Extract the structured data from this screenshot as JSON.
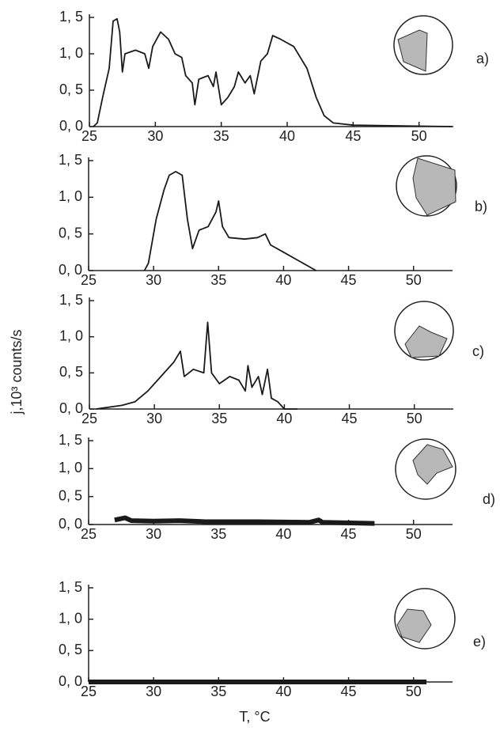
{
  "ylabel": "j,10³ counts/s",
  "chart_data": [
    {
      "type": "line",
      "label": "a)",
      "xlim": [
        25,
        52.6
      ],
      "ylim": [
        0,
        1.5
      ],
      "xticks": [
        25,
        30,
        35,
        40,
        45,
        50
      ],
      "yticks": [
        {
          "value": 0,
          "label": "0, 0"
        },
        {
          "value": 0.5,
          "label": "0, 5"
        },
        {
          "value": 1,
          "label": "1, 0"
        },
        {
          "value": 1.5,
          "label": "1, 5"
        }
      ],
      "x": [
        25.3,
        25.6,
        26,
        26.5,
        26.8,
        27.1,
        27.3,
        27.5,
        27.7,
        28.5,
        29.2,
        29.5,
        29.8,
        30.4,
        31,
        31.5,
        32,
        32.3,
        32.8,
        33,
        33.3,
        34,
        34.4,
        34.6,
        35,
        35.5,
        36,
        36.3,
        36.8,
        37.2,
        37.5,
        38,
        38.5,
        38.9,
        39.5,
        40.5,
        41.5,
        42.2,
        42.8,
        43.5,
        45,
        52.5
      ],
      "values": [
        0,
        0.05,
        0.4,
        0.8,
        1.45,
        1.48,
        1.3,
        0.75,
        1.0,
        1.05,
        1.0,
        0.8,
        1.1,
        1.3,
        1.2,
        1.0,
        0.95,
        0.7,
        0.6,
        0.3,
        0.65,
        0.7,
        0.55,
        0.75,
        0.3,
        0.4,
        0.55,
        0.75,
        0.6,
        0.7,
        0.45,
        0.9,
        1.0,
        1.25,
        1.2,
        1.1,
        0.8,
        0.4,
        0.15,
        0.05,
        0.02,
        0
      ]
    },
    {
      "type": "line",
      "label": "b)",
      "xlim": [
        25,
        53
      ],
      "ylim": [
        0,
        1.5
      ],
      "xticks": [
        25,
        30,
        35,
        40,
        45,
        50
      ],
      "yticks": [
        {
          "value": 0,
          "label": "0, 0"
        },
        {
          "value": 0.5,
          "label": "0, 5"
        },
        {
          "value": 1,
          "label": "1, 0"
        },
        {
          "value": 1.5,
          "label": "1, 5"
        }
      ],
      "x": [
        29.3,
        29.6,
        30.2,
        30.8,
        31.2,
        31.7,
        32.2,
        32.6,
        33,
        33.5,
        34.2,
        34.8,
        35,
        35.3,
        35.8,
        37,
        38,
        38.6,
        39,
        40,
        41,
        42,
        42.5
      ],
      "values": [
        0,
        0.1,
        0.7,
        1.1,
        1.3,
        1.35,
        1.3,
        0.7,
        0.3,
        0.55,
        0.6,
        0.8,
        0.95,
        0.6,
        0.45,
        0.43,
        0.45,
        0.5,
        0.35,
        0.25,
        0.15,
        0.05,
        0
      ]
    },
    {
      "type": "line",
      "label": "c)",
      "xlim": [
        25,
        53
      ],
      "ylim": [
        0,
        1.5
      ],
      "xticks": [
        25,
        30,
        35,
        40,
        45,
        50
      ],
      "yticks": [
        {
          "value": 0,
          "label": "0, 0"
        },
        {
          "value": 0.5,
          "label": "0, 5"
        },
        {
          "value": 1,
          "label": "1, 0"
        },
        {
          "value": 1.5,
          "label": "1, 5"
        }
      ],
      "x": [
        25.5,
        27.5,
        28.5,
        29.5,
        30.5,
        31.5,
        32,
        32.3,
        33,
        33.8,
        34.1,
        34.4,
        35,
        35.8,
        36.5,
        37,
        37.2,
        37.5,
        38,
        38.3,
        38.7,
        39,
        39.5,
        40,
        41
      ],
      "values": [
        0,
        0.05,
        0.1,
        0.25,
        0.45,
        0.65,
        0.8,
        0.45,
        0.55,
        0.5,
        1.2,
        0.5,
        0.35,
        0.45,
        0.4,
        0.25,
        0.6,
        0.3,
        0.45,
        0.2,
        0.55,
        0.15,
        0.1,
        0,
        0
      ]
    },
    {
      "type": "line",
      "label": "d)",
      "xlim": [
        25,
        53
      ],
      "ylim": [
        0,
        1.5
      ],
      "xticks": [
        25,
        30,
        35,
        40,
        45,
        50
      ],
      "yticks": [
        {
          "value": 0,
          "label": "0, 0"
        },
        {
          "value": 0.5,
          "label": "0, 5"
        },
        {
          "value": 1,
          "label": "1, 0"
        },
        {
          "value": 1.5,
          "label": "1, 5"
        }
      ],
      "x": [
        27,
        27.8,
        28.3,
        30,
        32,
        34,
        38,
        42,
        42.7,
        43,
        47
      ],
      "values": [
        0.08,
        0.12,
        0.07,
        0.06,
        0.07,
        0.05,
        0.05,
        0.04,
        0.08,
        0.04,
        0.02
      ]
    },
    {
      "type": "line",
      "label": "e)",
      "xlabel": "T, °C",
      "xlim": [
        25,
        53
      ],
      "ylim": [
        0,
        1.5
      ],
      "xticks": [
        25,
        30,
        35,
        40,
        45,
        50
      ],
      "yticks": [
        {
          "value": 0,
          "label": "0, 0"
        },
        {
          "value": 0.5,
          "label": "0, 5"
        },
        {
          "value": 1,
          "label": "1, 0"
        },
        {
          "value": 1.5,
          "label": "1, 5"
        }
      ],
      "x": [
        25,
        51
      ],
      "values": [
        0,
        0
      ]
    }
  ]
}
